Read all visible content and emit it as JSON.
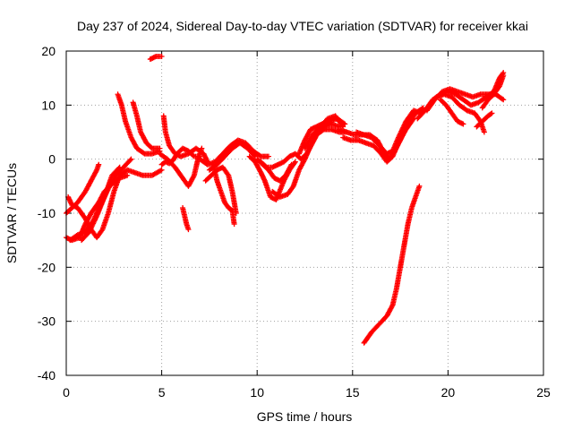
{
  "chart_data": {
    "type": "scatter",
    "title": "Day 237 of 2024, Sidereal Day-to-day VTEC variation (SDTVAR) for receiver kkai",
    "xlabel": "GPS time / hours",
    "ylabel": "SDTVAR / TECUs",
    "xlim": [
      0,
      25
    ],
    "ylim": [
      -40,
      20
    ],
    "xticks": [
      0,
      5,
      10,
      15,
      20,
      25
    ],
    "yticks": [
      -40,
      -30,
      -20,
      -10,
      0,
      10,
      20
    ],
    "xtick_labels": [
      "0",
      "5",
      "10",
      "15",
      "20",
      "25"
    ],
    "ytick_labels": [
      "-40",
      "-30",
      "-20",
      "-10",
      "0",
      "10",
      "20"
    ],
    "grid": true,
    "marker": "+",
    "color": "#ff0000",
    "series": [
      {
        "values": [
          [
            0.0,
            -10.0
          ],
          [
            0.3,
            -9.0
          ],
          [
            0.6,
            -8.0
          ],
          [
            1.0,
            -6.0
          ],
          [
            1.3,
            -4.0
          ],
          [
            1.6,
            -2.0
          ],
          [
            1.7,
            -1.0
          ]
        ]
      },
      {
        "values": [
          [
            0.1,
            -7.0
          ],
          [
            0.3,
            -8.5
          ],
          [
            0.6,
            -9.0
          ],
          [
            1.0,
            -11.0
          ],
          [
            1.3,
            -13.0
          ],
          [
            1.6,
            -14.5
          ],
          [
            1.9,
            -13.0
          ],
          [
            2.2,
            -10.0
          ],
          [
            2.5,
            -6.0
          ],
          [
            2.8,
            -3.0
          ],
          [
            3.2,
            -2.0
          ],
          [
            3.6,
            -2.5
          ],
          [
            4.0,
            -3.0
          ],
          [
            4.5,
            -3.0
          ],
          [
            5.0,
            -2.0
          ]
        ]
      },
      {
        "values": [
          [
            0.0,
            -14.5
          ],
          [
            0.3,
            -15.0
          ],
          [
            0.7,
            -14.5
          ],
          [
            1.0,
            -12.0
          ],
          [
            1.3,
            -10.0
          ],
          [
            1.7,
            -8.0
          ],
          [
            2.0,
            -6.0
          ],
          [
            2.4,
            -4.5
          ],
          [
            2.8,
            -3.5
          ],
          [
            3.2,
            -3.0
          ]
        ]
      },
      {
        "values": [
          [
            0.2,
            -15.0
          ],
          [
            0.6,
            -14.0
          ],
          [
            1.0,
            -13.5
          ],
          [
            1.4,
            -11.5
          ],
          [
            1.8,
            -8.5
          ],
          [
            2.2,
            -5.5
          ],
          [
            2.6,
            -3.0
          ],
          [
            3.0,
            -1.5
          ],
          [
            3.4,
            0.0
          ]
        ]
      },
      {
        "values": [
          [
            0.8,
            -15.0
          ],
          [
            1.2,
            -13.5
          ],
          [
            1.6,
            -10.5
          ],
          [
            2.0,
            -7.0
          ],
          [
            2.4,
            -3.0
          ],
          [
            2.8,
            -1.5
          ]
        ]
      },
      {
        "values": [
          [
            2.7,
            12.0
          ],
          [
            2.9,
            10.0
          ],
          [
            3.1,
            7.0
          ],
          [
            3.4,
            4.0
          ],
          [
            3.7,
            2.0
          ],
          [
            4.1,
            1.0
          ],
          [
            4.5,
            1.0
          ],
          [
            4.9,
            1.5
          ]
        ]
      },
      {
        "values": [
          [
            3.5,
            10.5
          ],
          [
            3.7,
            8.0
          ],
          [
            3.9,
            5.0
          ],
          [
            4.2,
            3.0
          ],
          [
            4.5,
            2.0
          ],
          [
            4.9,
            2.0
          ]
        ]
      },
      {
        "values": [
          [
            4.4,
            18.5
          ],
          [
            4.7,
            19.0
          ],
          [
            5.0,
            19.0
          ]
        ]
      },
      {
        "values": [
          [
            5.1,
            8.0
          ],
          [
            5.2,
            5.0
          ],
          [
            5.4,
            2.5
          ],
          [
            5.7,
            1.0
          ],
          [
            6.0,
            0.5
          ],
          [
            6.4,
            1.0
          ],
          [
            6.8,
            2.0
          ],
          [
            7.2,
            1.0
          ],
          [
            7.4,
            -0.5
          ]
        ]
      },
      {
        "values": [
          [
            5.0,
            -1.0
          ],
          [
            5.2,
            -0.5
          ],
          [
            5.4,
            -0.8
          ],
          [
            5.6,
            -0.2
          ],
          [
            5.8,
            1.0
          ],
          [
            6.1,
            2.0
          ],
          [
            6.4,
            1.5
          ],
          [
            6.7,
            0.5
          ],
          [
            7.0,
            0.5
          ]
        ]
      },
      {
        "values": [
          [
            4.9,
            1.0
          ],
          [
            5.3,
            0.0
          ],
          [
            5.7,
            -1.5
          ],
          [
            6.1,
            -3.5
          ],
          [
            6.4,
            -5.0
          ],
          [
            6.7,
            -3.0
          ],
          [
            6.9,
            0.0
          ],
          [
            7.1,
            2.0
          ]
        ]
      },
      {
        "values": [
          [
            6.1,
            -9.0
          ],
          [
            6.2,
            -10.5
          ],
          [
            6.3,
            -12.0
          ],
          [
            6.4,
            -13.0
          ]
        ]
      },
      {
        "values": [
          [
            7.3,
            -4.0
          ],
          [
            7.6,
            -3.0
          ],
          [
            7.9,
            -2.0
          ],
          [
            8.2,
            -1.5
          ],
          [
            8.5,
            -3.0
          ],
          [
            8.7,
            -6.0
          ],
          [
            8.8,
            -8.0
          ],
          [
            8.9,
            -10.0
          ]
        ]
      },
      {
        "values": [
          [
            7.7,
            -1.0
          ],
          [
            7.9,
            -4.0
          ],
          [
            8.1,
            -6.0
          ],
          [
            8.3,
            -8.0
          ],
          [
            8.5,
            -9.0
          ],
          [
            8.7,
            -9.5
          ],
          [
            8.8,
            -12.0
          ]
        ]
      },
      {
        "values": [
          [
            7.0,
            0.0
          ],
          [
            7.4,
            -1.0
          ],
          [
            7.8,
            -0.5
          ],
          [
            8.2,
            1.0
          ],
          [
            8.6,
            2.5
          ],
          [
            9.0,
            3.5
          ],
          [
            9.4,
            3.0
          ],
          [
            9.8,
            1.5
          ],
          [
            10.2,
            0.5
          ],
          [
            10.6,
            0.5
          ]
        ]
      },
      {
        "values": [
          [
            7.5,
            -2.0
          ],
          [
            7.9,
            -1.0
          ],
          [
            8.3,
            0.5
          ],
          [
            8.7,
            2.0
          ],
          [
            9.1,
            3.0
          ],
          [
            9.5,
            2.0
          ],
          [
            9.9,
            0.5
          ]
        ]
      },
      {
        "values": [
          [
            9.6,
            0.5
          ],
          [
            9.9,
            -0.5
          ],
          [
            10.2,
            -2.5
          ],
          [
            10.4,
            -4.0
          ],
          [
            10.7,
            -7.0
          ],
          [
            11.0,
            -7.5
          ],
          [
            11.4,
            -4.0
          ],
          [
            11.7,
            -2.0
          ],
          [
            12.0,
            -0.5
          ]
        ]
      },
      {
        "values": [
          [
            10.0,
            0.0
          ],
          [
            10.3,
            -1.0
          ],
          [
            10.6,
            -2.0
          ],
          [
            10.9,
            -3.5
          ],
          [
            11.2,
            -4.0
          ],
          [
            11.5,
            -3.0
          ],
          [
            11.8,
            -1.0
          ]
        ]
      },
      {
        "values": [
          [
            10.2,
            -0.5
          ],
          [
            10.5,
            -1.5
          ],
          [
            10.8,
            -1.5
          ],
          [
            11.1,
            -1.0
          ],
          [
            11.4,
            -0.5
          ],
          [
            11.7,
            0.5
          ],
          [
            12.0,
            1.0
          ],
          [
            12.3,
            0.0
          ],
          [
            12.6,
            1.0
          ],
          [
            12.9,
            3.0
          ],
          [
            13.2,
            5.0
          ],
          [
            13.5,
            6.0
          ],
          [
            13.9,
            6.5
          ],
          [
            14.3,
            6.0
          ]
        ]
      },
      {
        "values": [
          [
            10.8,
            -6.0
          ],
          [
            11.2,
            -7.0
          ],
          [
            11.6,
            -6.5
          ],
          [
            11.9,
            -5.0
          ],
          [
            12.2,
            -2.0
          ],
          [
            12.5,
            0.0
          ],
          [
            12.8,
            2.5
          ],
          [
            13.1,
            4.5
          ],
          [
            13.5,
            5.5
          ],
          [
            13.9,
            5.5
          ],
          [
            14.3,
            5.0
          ],
          [
            14.7,
            5.0
          ]
        ]
      },
      {
        "values": [
          [
            12.2,
            1.0
          ],
          [
            12.5,
            3.5
          ],
          [
            12.8,
            5.5
          ],
          [
            13.1,
            6.0
          ],
          [
            13.4,
            6.5
          ],
          [
            13.8,
            7.0
          ],
          [
            14.2,
            7.5
          ],
          [
            14.6,
            6.5
          ]
        ]
      },
      {
        "values": [
          [
            12.5,
            2.0
          ],
          [
            12.9,
            4.5
          ],
          [
            13.3,
            6.0
          ],
          [
            13.7,
            7.5
          ],
          [
            14.1,
            8.0
          ],
          [
            14.5,
            6.0
          ]
        ]
      },
      {
        "values": [
          [
            14.3,
            5.5
          ],
          [
            14.7,
            5.0
          ],
          [
            15.1,
            4.5
          ],
          [
            15.5,
            4.5
          ],
          [
            15.9,
            4.5
          ],
          [
            16.3,
            3.5
          ],
          [
            16.6,
            1.5
          ],
          [
            16.9,
            0.0
          ],
          [
            17.2,
            1.5
          ],
          [
            17.5,
            3.5
          ],
          [
            17.9,
            6.5
          ],
          [
            18.3,
            8.5
          ],
          [
            18.7,
            9.5
          ]
        ]
      },
      {
        "values": [
          [
            14.5,
            4.0
          ],
          [
            14.9,
            3.5
          ],
          [
            15.3,
            3.5
          ],
          [
            15.7,
            3.0
          ],
          [
            16.1,
            2.5
          ],
          [
            16.5,
            1.0
          ],
          [
            16.8,
            -0.5
          ],
          [
            17.1,
            0.5
          ],
          [
            17.4,
            3.0
          ],
          [
            17.8,
            5.5
          ],
          [
            18.2,
            7.5
          ]
        ]
      },
      {
        "values": [
          [
            15.2,
            5.0
          ],
          [
            15.6,
            4.5
          ],
          [
            16.0,
            4.0
          ],
          [
            16.4,
            2.5
          ],
          [
            16.8,
            1.0
          ],
          [
            17.1,
            1.5
          ],
          [
            17.4,
            4.0
          ],
          [
            17.8,
            7.0
          ],
          [
            18.2,
            9.0
          ],
          [
            18.6,
            8.5
          ]
        ]
      },
      {
        "values": [
          [
            15.6,
            -34.0
          ],
          [
            16.0,
            -32.0
          ],
          [
            16.4,
            -30.5
          ],
          [
            16.8,
            -29.0
          ],
          [
            17.1,
            -27.0
          ],
          [
            17.3,
            -24.0
          ],
          [
            17.5,
            -20.0
          ],
          [
            17.7,
            -16.0
          ],
          [
            17.9,
            -12.0
          ],
          [
            18.1,
            -9.0
          ],
          [
            18.3,
            -7.0
          ],
          [
            18.5,
            -5.0
          ]
        ]
      },
      {
        "values": [
          [
            18.4,
            7.5
          ],
          [
            18.8,
            9.0
          ],
          [
            19.2,
            11.0
          ],
          [
            19.6,
            12.0
          ],
          [
            20.0,
            12.5
          ],
          [
            20.4,
            12.0
          ],
          [
            20.8,
            11.0
          ],
          [
            21.2,
            10.0
          ],
          [
            21.6,
            10.5
          ],
          [
            22.0,
            11.5
          ],
          [
            22.4,
            12.5
          ],
          [
            22.7,
            15.0
          ],
          [
            22.9,
            16.0
          ]
        ]
      },
      {
        "values": [
          [
            19.0,
            10.0
          ],
          [
            19.4,
            11.5
          ],
          [
            19.8,
            12.0
          ],
          [
            20.2,
            11.5
          ],
          [
            20.6,
            10.0
          ],
          [
            21.0,
            9.0
          ],
          [
            21.4,
            8.5
          ],
          [
            21.7,
            7.0
          ],
          [
            21.9,
            5.0
          ]
        ]
      },
      {
        "values": [
          [
            18.9,
            9.0
          ],
          [
            19.3,
            11.0
          ],
          [
            19.7,
            12.5
          ],
          [
            20.1,
            13.0
          ],
          [
            20.5,
            12.5
          ],
          [
            20.9,
            12.0
          ],
          [
            21.3,
            11.5
          ],
          [
            21.7,
            12.0
          ],
          [
            22.1,
            12.0
          ],
          [
            22.5,
            12.0
          ],
          [
            22.9,
            11.0
          ]
        ]
      },
      {
        "values": [
          [
            19.6,
            11.0
          ],
          [
            19.9,
            10.0
          ],
          [
            20.2,
            8.5
          ],
          [
            20.5,
            7.0
          ],
          [
            20.8,
            6.5
          ]
        ]
      },
      {
        "values": [
          [
            21.5,
            6.0
          ],
          [
            21.8,
            7.0
          ],
          [
            22.1,
            8.0
          ],
          [
            22.3,
            8.5
          ]
        ]
      },
      {
        "values": [
          [
            21.8,
            9.5
          ],
          [
            22.1,
            11.0
          ],
          [
            22.4,
            12.0
          ],
          [
            22.7,
            13.5
          ],
          [
            22.9,
            15.5
          ]
        ]
      }
    ]
  }
}
